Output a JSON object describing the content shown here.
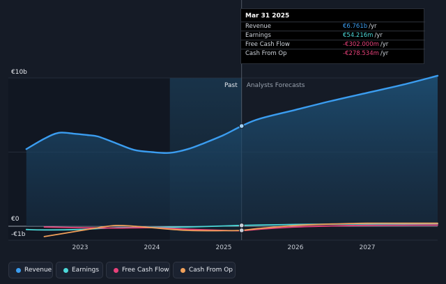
{
  "tooltip": {
    "title": "Mar 31 2025",
    "rows": [
      {
        "label": "Revenue",
        "value": "€6.761b",
        "unit": "/yr",
        "color": "#3b9df0"
      },
      {
        "label": "Earnings",
        "value": "€54.216m",
        "unit": "/yr",
        "color": "#4dd8d8"
      },
      {
        "label": "Free Cash Flow",
        "value": "-€302.000m",
        "unit": "/yr",
        "color": "#e8417a"
      },
      {
        "label": "Cash From Op",
        "value": "-€278.534m",
        "unit": "/yr",
        "color": "#f0a05a"
      }
    ]
  },
  "legend": [
    {
      "label": "Revenue",
      "color": "#3b9df0"
    },
    {
      "label": "Earnings",
      "color": "#4dd8d8"
    },
    {
      "label": "Free Cash Flow",
      "color": "#e8417a"
    },
    {
      "label": "Cash From Op",
      "color": "#f0a05a"
    }
  ],
  "chart_data": {
    "type": "line",
    "title": "",
    "xlabel": "",
    "ylabel": "",
    "y_tick_labels": [
      "€10b",
      "€0",
      "-€1b"
    ],
    "y_ticks": [
      10,
      0,
      -1
    ],
    "ylim": [
      -1,
      10
    ],
    "xlim": [
      2022.2,
      2028.0
    ],
    "x_tick_labels": [
      "2023",
      "2024",
      "2025",
      "2026",
      "2027"
    ],
    "x_ticks": [
      2023,
      2024,
      2025,
      2026,
      2027
    ],
    "annotations": {
      "past": "Past",
      "forecast": "Analysts Forecasts"
    },
    "divider_x": 2025.25,
    "highlight_x_range": [
      2024.25,
      2025.25
    ],
    "grid": true,
    "legend_position": "bottom",
    "series": [
      {
        "name": "Revenue",
        "color": "#3b9df0",
        "fill": true,
        "x": [
          2022.25,
          2022.5,
          2022.7,
          2022.9,
          2023.1,
          2023.25,
          2023.5,
          2023.75,
          2024.0,
          2024.25,
          2024.5,
          2024.75,
          2025.0,
          2025.25,
          2025.5,
          2026.0,
          2026.5,
          2027.0,
          2027.5,
          2028.0
        ],
        "y": [
          5.2,
          5.9,
          6.3,
          6.25,
          6.15,
          6.05,
          5.6,
          5.15,
          5.0,
          4.95,
          5.2,
          5.65,
          6.15,
          6.761,
          7.25,
          7.85,
          8.45,
          9.0,
          9.55,
          10.15
        ]
      },
      {
        "name": "Earnings",
        "color": "#4dd8d8",
        "fill": false,
        "x": [
          2022.25,
          2022.5,
          2023.0,
          2023.5,
          2024.0,
          2024.5,
          2025.0,
          2025.25,
          2025.5,
          2026.0,
          2026.5,
          2027.0,
          2027.5,
          2028.0
        ],
        "y": [
          -0.22,
          -0.25,
          -0.22,
          -0.1,
          -0.08,
          -0.05,
          0.02,
          0.054,
          0.08,
          0.12,
          0.14,
          0.15,
          0.16,
          0.17
        ]
      },
      {
        "name": "Free Cash Flow",
        "color": "#e8417a",
        "fill": false,
        "x": [
          2022.5,
          2023.0,
          2023.5,
          2024.0,
          2024.5,
          2025.0,
          2025.25,
          2025.5,
          2026.0,
          2026.5,
          2027.0,
          2027.5,
          2028.0
        ],
        "y": [
          -0.05,
          -0.1,
          -0.12,
          -0.1,
          -0.2,
          -0.28,
          -0.302,
          -0.2,
          -0.05,
          0.02,
          0.06,
          0.07,
          0.08
        ]
      },
      {
        "name": "Cash From Op",
        "color": "#f0a05a",
        "fill": false,
        "x": [
          2022.5,
          2023.0,
          2023.25,
          2023.5,
          2023.75,
          2024.0,
          2024.5,
          2025.0,
          2025.25,
          2025.5,
          2026.0,
          2026.5,
          2027.0,
          2027.5,
          2028.0
        ],
        "y": [
          -0.7,
          -0.3,
          -0.1,
          0.05,
          0.0,
          -0.1,
          -0.28,
          -0.3,
          -0.279,
          -0.15,
          0.05,
          0.15,
          0.2,
          0.2,
          0.2
        ]
      }
    ]
  }
}
